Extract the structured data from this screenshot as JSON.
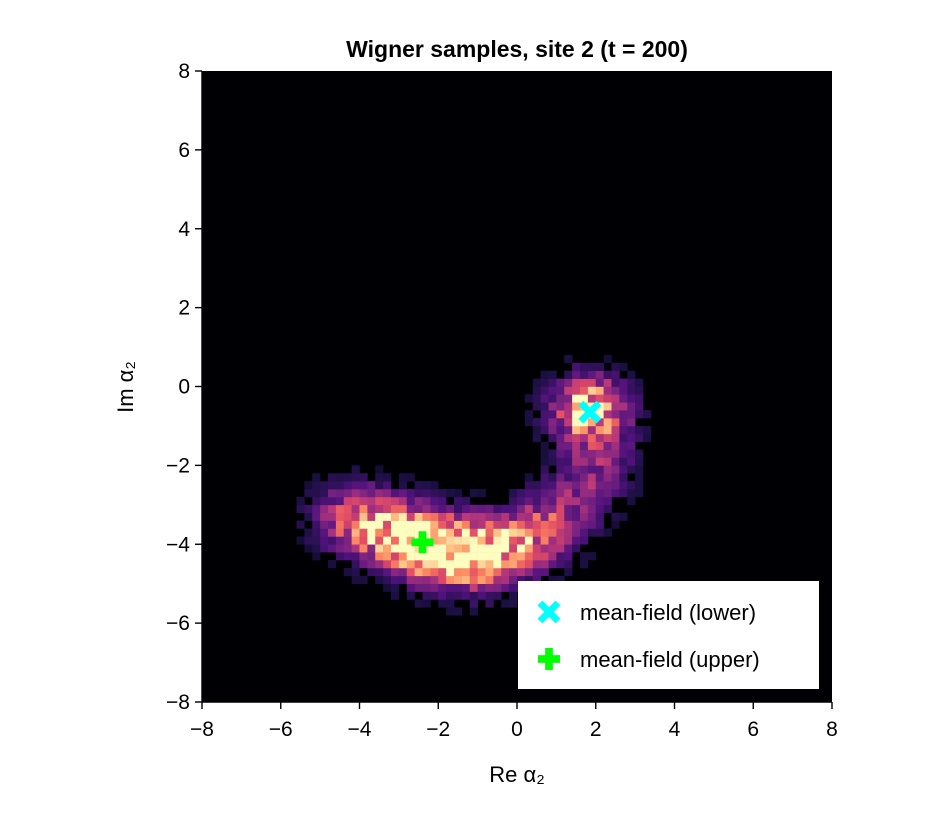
{
  "chart_data": {
    "type": "heatmap",
    "title": "Wigner samples, site 2 (t = 200)",
    "xlabel": "Re α₂",
    "ylabel": "Im α₂",
    "xlim": [
      -8,
      8
    ],
    "ylim": [
      -8,
      8
    ],
    "xticks": [
      -8,
      -6,
      -4,
      -2,
      0,
      2,
      4,
      6,
      8
    ],
    "yticks": [
      -8,
      -6,
      -4,
      -2,
      0,
      2,
      4,
      6,
      8
    ],
    "xtick_labels": [
      "−8",
      "−6",
      "−4",
      "−2",
      "0",
      "2",
      "4",
      "6",
      "8"
    ],
    "ytick_labels": [
      "−8",
      "−6",
      "−4",
      "−2",
      "0",
      "2",
      "4",
      "6",
      "8"
    ],
    "bins": 80,
    "colormap": "magma",
    "background_color": "#000004",
    "grid": false,
    "clusters": [
      {
        "type": "blob",
        "center": [
          1.85,
          -0.62
        ],
        "sigma_x": 0.55,
        "sigma_y": 0.5,
        "peak": 1.0
      },
      {
        "type": "arc",
        "points": [
          [
            -4.3,
            -3.3
          ],
          [
            -3.6,
            -3.55
          ],
          [
            -2.9,
            -3.8
          ],
          [
            -2.2,
            -4.05
          ],
          [
            -1.6,
            -4.2
          ],
          [
            -1.0,
            -4.3
          ],
          [
            -0.4,
            -4.15
          ],
          [
            0.2,
            -3.9
          ],
          [
            0.8,
            -3.55
          ],
          [
            1.3,
            -3.05
          ],
          [
            1.8,
            -2.45
          ],
          [
            2.1,
            -1.8
          ]
        ],
        "weights": [
          0.35,
          0.55,
          0.7,
          0.75,
          0.7,
          0.6,
          0.45,
          0.35,
          0.25,
          0.18,
          0.15,
          0.2
        ],
        "sigma": 0.5
      }
    ],
    "markers": [
      {
        "name": "mean-field (lower)",
        "symbol": "x",
        "color": "#00ffff",
        "x": 1.85,
        "y": -0.65
      },
      {
        "name": "mean-field (upper)",
        "symbol": "+",
        "color": "#00ff00",
        "x": -2.4,
        "y": -3.95
      }
    ],
    "legend_position": "lower-right"
  }
}
